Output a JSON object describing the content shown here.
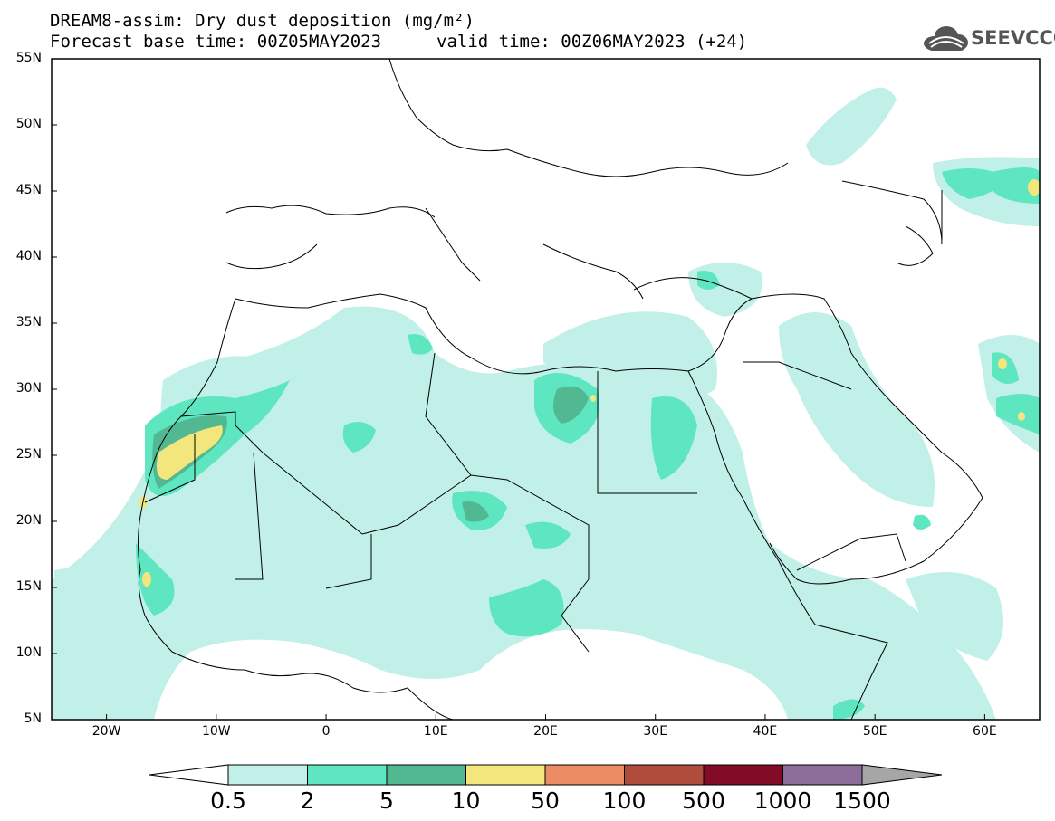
{
  "title": {
    "line1": "DREAM8-assim: Dry dust deposition (mg/m²)",
    "line2_left": "Forecast base time: 00Z05MAY2023",
    "line2_right": "valid time: 00Z06MAY2023 (+24)"
  },
  "logo": {
    "text": "SEEVCCC",
    "icon": "cloud-logo-icon"
  },
  "map": {
    "lon_range": [
      -25,
      65
    ],
    "lat_range": [
      5,
      55
    ],
    "y_ticks": [
      "55N",
      "50N",
      "45N",
      "40N",
      "35N",
      "30N",
      "25N",
      "20N",
      "15N",
      "10N",
      "5N"
    ],
    "x_ticks": [
      "20W",
      "10W",
      "0",
      "10E",
      "20E",
      "30E",
      "40E",
      "50E",
      "60E"
    ],
    "background_color": "#ffffff",
    "coastline_color": "#000000"
  },
  "colorbar": {
    "labels": [
      "0.5",
      "2",
      "5",
      "10",
      "50",
      "100",
      "500",
      "1000",
      "1500"
    ],
    "colors": [
      "#ffffff",
      "#c0f0e8",
      "#5ee6c0",
      "#52b892",
      "#f2e67c",
      "#ec8c64",
      "#b04c3c",
      "#820c28",
      "#8c6c98",
      "#a6a6a6"
    ]
  }
}
